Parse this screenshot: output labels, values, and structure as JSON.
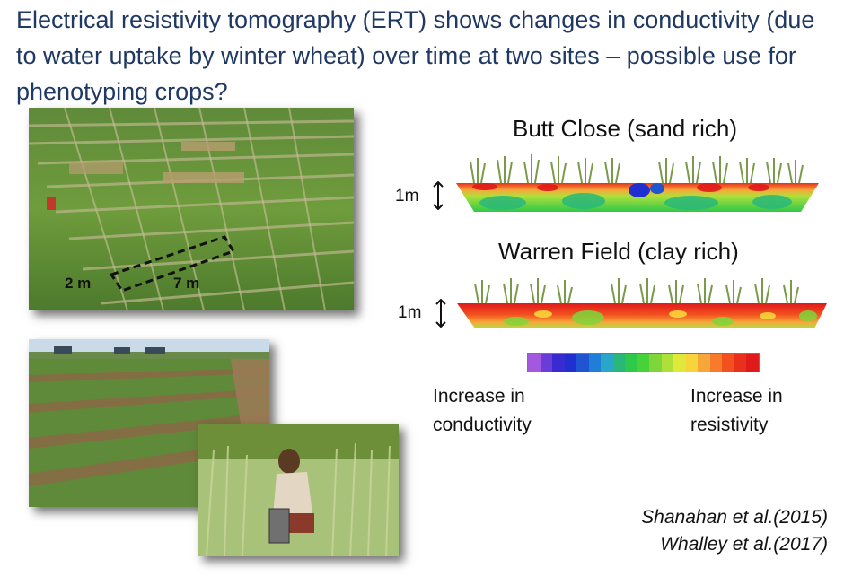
{
  "slide": {
    "title": "Electrical resistivity tomography (ERT) shows changes in conductivity (due to water uptake by winter wheat) over time at two sites – possible use for phenotyping crops?"
  },
  "field_photo": {
    "label_2m": "2 m",
    "label_7m": "7 m"
  },
  "sites": [
    {
      "title": "Butt Close (sand rich)",
      "scale": "1m"
    },
    {
      "title": "Warren Field (clay rich)",
      "scale": "1m"
    }
  ],
  "legend": {
    "colors": [
      "#a259e0",
      "#6a3cd8",
      "#3a2bd0",
      "#1f2fd0",
      "#1f55d0",
      "#1f7ed8",
      "#2aa6c8",
      "#2ab87a",
      "#2ec84a",
      "#48d23a",
      "#7ed63a",
      "#aee03a",
      "#e0e83a",
      "#f7d53a",
      "#f7a73a",
      "#f77b2a",
      "#f2501f",
      "#e8301a",
      "#e01a1a"
    ],
    "low_label": "Increase in conductivity",
    "high_label": "Increase in resistivity"
  },
  "citations": [
    "Shanahan et al.(2015)",
    "Whalley et al.(2017)"
  ]
}
